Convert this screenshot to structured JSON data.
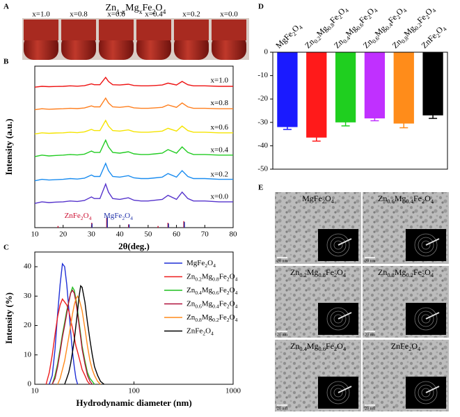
{
  "photo": {
    "label": "A",
    "title": "Zn1-xMgxFe2O4",
    "samples": [
      "x=1.0",
      "x=0.8",
      "x=0.6",
      "x=0.4",
      "x=0.2",
      "x=0.0"
    ]
  },
  "chart_data": [
    {
      "type": "line",
      "label": "B",
      "x_label": "2θ(deg.)",
      "y_label": "Intensity (a.u.)",
      "xlim": [
        10,
        80
      ],
      "xticks": [
        10,
        20,
        30,
        40,
        50,
        60,
        70,
        80
      ],
      "ylim": [
        0,
        100
      ],
      "x": [
        10,
        12.5,
        15,
        17.5,
        20,
        22.5,
        25,
        27.5,
        30,
        31,
        33,
        35,
        36,
        37.5,
        40,
        43,
        45,
        47.5,
        50,
        52.5,
        55,
        57,
        60,
        62,
        64,
        66,
        70,
        75,
        80
      ],
      "series": [
        {
          "name": "x=1.0",
          "color": "#ee1111",
          "values": [
            87,
            87.5,
            87.3,
            87.4,
            87.5,
            87.8,
            87.6,
            87.9,
            89,
            88.5,
            88.5,
            93,
            90.5,
            88.5,
            88.3,
            88.8,
            88,
            87.8,
            87.8,
            88,
            88.3,
            89.5,
            88.3,
            90.5,
            88.5,
            87.8,
            87.8,
            87.5,
            87.5
          ]
        },
        {
          "name": "x=0.8",
          "color": "#ff7f1e",
          "values": [
            73,
            73.6,
            73.3,
            73.5,
            73.6,
            73.9,
            73.7,
            74.1,
            75.4,
            74.8,
            74.8,
            80.2,
            77.2,
            74.8,
            74.5,
            75.1,
            74.2,
            73.9,
            73.9,
            74.2,
            74.5,
            76,
            74.5,
            77.2,
            74.8,
            73.9,
            73.9,
            73.6,
            73.6
          ]
        },
        {
          "name": "x=0.6",
          "color": "#f5e400",
          "values": [
            58,
            58.7,
            58.4,
            58.6,
            58.7,
            59.1,
            58.8,
            59.3,
            60.8,
            60.1,
            60.1,
            66.4,
            62.9,
            60.1,
            59.8,
            60.5,
            59.4,
            59.1,
            59.1,
            59.4,
            59.8,
            61.5,
            59.8,
            62.9,
            60.1,
            59.1,
            59.1,
            58.7,
            58.7
          ]
        },
        {
          "name": "x=0.4",
          "color": "#22cc22",
          "values": [
            44,
            44.9,
            44.4,
            44.7,
            44.9,
            45.3,
            45,
            45.5,
            47.4,
            46.6,
            46.6,
            54.2,
            50,
            46.6,
            46.1,
            47,
            45.7,
            45.3,
            45.3,
            45.7,
            46.1,
            48.3,
            46.1,
            50,
            46.6,
            45.3,
            45.3,
            44.9,
            44.9
          ]
        },
        {
          "name": "x=0.2",
          "color": "#1a8cf0",
          "values": [
            29,
            29.9,
            29.5,
            29.7,
            29.9,
            30.4,
            30.1,
            30.6,
            32.6,
            31.7,
            31.7,
            39.8,
            35.3,
            31.7,
            31.3,
            32.2,
            30.8,
            30.4,
            30.4,
            30.8,
            31.3,
            33.5,
            31.3,
            35.3,
            31.7,
            30.4,
            30.4,
            29.9,
            29.9
          ]
        },
        {
          "name": "x=0.0",
          "color": "#5533cc",
          "values": [
            15,
            16,
            15.5,
            15.8,
            16,
            16.5,
            16.2,
            16.8,
            19,
            18,
            18,
            27,
            22,
            18,
            17.5,
            18.5,
            17,
            16.5,
            16.5,
            17,
            17.5,
            20,
            17.5,
            22,
            18,
            16.5,
            16.5,
            16,
            16
          ]
        }
      ],
      "references": [
        {
          "name": "ZnFe2O4",
          "color": "#cc1133",
          "x": [
            18.2,
            30.1,
            35.4,
            43.1,
            53.5,
            57,
            62.6
          ],
          "values": [
            1,
            3,
            6,
            2,
            1,
            3,
            4
          ]
        },
        {
          "name": "MgFe2O4",
          "color": "#2233aa",
          "x": [
            30.2,
            35.6,
            43.3,
            57.2,
            62.8
          ],
          "values": [
            2.5,
            6.5,
            2,
            2.5,
            3.5
          ]
        }
      ]
    },
    {
      "type": "line",
      "label": "C",
      "x_label": "Hydrodynamic diameter (nm)",
      "y_label": "Intensity (%)",
      "x_scale": "log",
      "xlim": [
        10,
        1000
      ],
      "xticks": [
        10,
        100,
        1000
      ],
      "ylim": [
        0,
        45
      ],
      "yticks": [
        0,
        10,
        20,
        30,
        40
      ],
      "x": [
        12,
        13,
        14,
        15,
        16,
        17,
        18,
        19,
        20,
        21,
        22,
        23,
        24,
        25,
        26,
        27,
        28,
        29,
        30,
        32,
        34,
        36,
        38,
        40,
        43,
        46,
        50
      ],
      "series": [
        {
          "name": "MgFe2O4",
          "color": "#1f2fd6",
          "values": [
            null,
            null,
            0,
            3,
            12,
            24,
            34,
            41,
            40,
            34,
            26,
            18,
            11,
            6,
            2,
            0,
            null,
            null,
            null,
            null,
            null,
            null,
            null,
            null,
            null,
            null,
            null
          ]
        },
        {
          "name": "Zn0.2Mg0.8Fe2O4",
          "color": "#ee1c1c",
          "values": [
            null,
            0,
            4,
            10,
            17,
            23,
            27,
            29,
            28,
            27,
            25,
            22,
            19,
            16,
            13,
            11,
            9,
            7,
            5,
            3,
            1,
            0,
            null,
            null,
            null,
            null,
            null
          ]
        },
        {
          "name": "Zn0.4Mg0.6Fe2O4",
          "color": "#1fbf1f",
          "values": [
            null,
            null,
            null,
            0,
            3,
            7,
            12,
            17,
            21,
            25,
            28,
            31,
            33,
            32,
            29,
            25,
            21,
            17,
            13,
            8,
            4,
            2,
            1,
            0,
            null,
            null,
            null
          ]
        },
        {
          "name": "Zn0.6Mg0.4Fe2O4",
          "color": "#b0103a",
          "values": [
            null,
            null,
            null,
            0,
            2,
            6,
            11,
            16,
            20,
            24,
            28,
            31,
            32,
            31,
            28,
            24,
            20,
            16,
            12,
            7,
            3,
            1,
            0,
            null,
            null,
            null,
            null
          ]
        },
        {
          "name": "Zn0.8Mg0.2Fe2O4",
          "color": "#ff8a1a",
          "values": [
            null,
            null,
            null,
            null,
            null,
            0,
            2,
            5,
            8,
            12,
            16,
            20,
            24,
            27,
            29,
            30,
            29,
            27,
            25,
            19,
            13,
            8,
            5,
            3,
            1,
            0,
            null
          ]
        },
        {
          "name": "ZnFe2O4",
          "color": "#000000",
          "values": [
            null,
            null,
            null,
            null,
            null,
            null,
            null,
            null,
            0,
            2,
            4,
            7,
            11,
            15,
            20,
            25,
            30,
            33.5,
            33,
            28,
            21,
            15,
            10,
            6,
            3,
            1,
            0
          ]
        }
      ]
    },
    {
      "type": "bar",
      "label": "D",
      "ylim": [
        -50,
        0
      ],
      "yticks": [
        0,
        -10,
        -20,
        -30,
        -40,
        -50
      ],
      "categories": [
        "MgFe2O4",
        "Zn0.2Mg0.8Fe2O4",
        "Zn0.4Mg0.6Fe2O4",
        "Zn0.6Mg0.4Fe2O4",
        "Zn0.8Mg0.2Fe2O4",
        "ZnFe2O4"
      ],
      "values": [
        -32,
        -36.5,
        -30,
        -28.3,
        -30.5,
        -27
      ],
      "errors": [
        1,
        1.5,
        1.5,
        1,
        1.8,
        1.3
      ],
      "colors": [
        "#1a1aff",
        "#ff1a1a",
        "#1fcf1f",
        "#c030ff",
        "#ff8c1a",
        "#000000"
      ]
    }
  ],
  "tem": {
    "label": "E",
    "scale_bar": "20 nm",
    "images": [
      "MgFe2O4",
      "Zn0.6Mg0.4Fe2O4",
      "Zn0.2Mg0.8Fe2O4",
      "Zn0.8Mg0.2Fe2O4",
      "Zn0.4Mg0.6Fe2O4",
      "ZnFe2O4"
    ]
  }
}
